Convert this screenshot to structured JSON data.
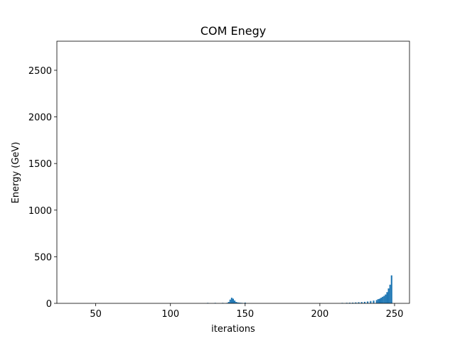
{
  "chart_data": {
    "type": "bar",
    "title": "COM Enegy",
    "xlabel": "iterations",
    "ylabel": "Energy (GeV)",
    "x": [
      125,
      130,
      135,
      138,
      139,
      140,
      141,
      142,
      143,
      144,
      145,
      146,
      147,
      148,
      150,
      215,
      218,
      220,
      222,
      224,
      226,
      228,
      230,
      232,
      234,
      236,
      238,
      239,
      240,
      241,
      242,
      243,
      244,
      245,
      246,
      247,
      248
    ],
    "values": [
      5,
      5,
      5,
      5,
      15,
      40,
      60,
      50,
      30,
      15,
      10,
      8,
      6,
      5,
      8,
      5,
      6,
      7,
      8,
      10,
      12,
      14,
      16,
      20,
      25,
      30,
      35,
      45,
      50,
      60,
      70,
      80,
      95,
      120,
      160,
      200,
      300
    ],
    "color": "#1f77b4",
    "xlim": [
      24,
      260
    ],
    "xticks": [
      50,
      100,
      150,
      200,
      250
    ],
    "ylim": [
      0,
      2812
    ],
    "yticks": [
      0,
      500,
      1000,
      1500,
      2000,
      2500
    ]
  }
}
